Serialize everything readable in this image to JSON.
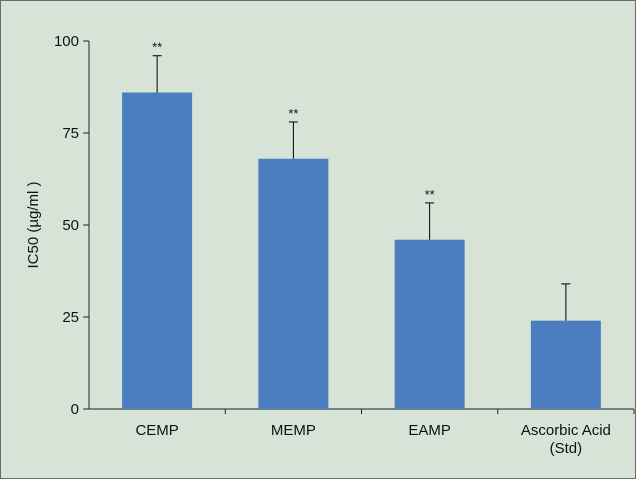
{
  "chart_data": {
    "type": "bar",
    "categories": [
      "CEMP",
      "MEMP",
      "EAMP",
      "Ascorbic Acid (Std)"
    ],
    "category_label_lines": [
      [
        "CEMP"
      ],
      [
        "MEMP"
      ],
      [
        "EAMP"
      ],
      [
        "Ascorbic Acid",
        "(Std)"
      ]
    ],
    "values": [
      86,
      68,
      46,
      24
    ],
    "error_upper": [
      10,
      10,
      10,
      10
    ],
    "significance": [
      "**",
      "**",
      "**",
      ""
    ],
    "ylabel": "IC50 (µg/ml )",
    "ylim": [
      0,
      100
    ],
    "yticks": [
      0,
      25,
      50,
      75,
      100
    ],
    "grid": false,
    "colors": {
      "background": "#d7e3d7",
      "border": "#6b6b6b",
      "bar": "#4a7ebf",
      "axis": "#222222"
    }
  }
}
